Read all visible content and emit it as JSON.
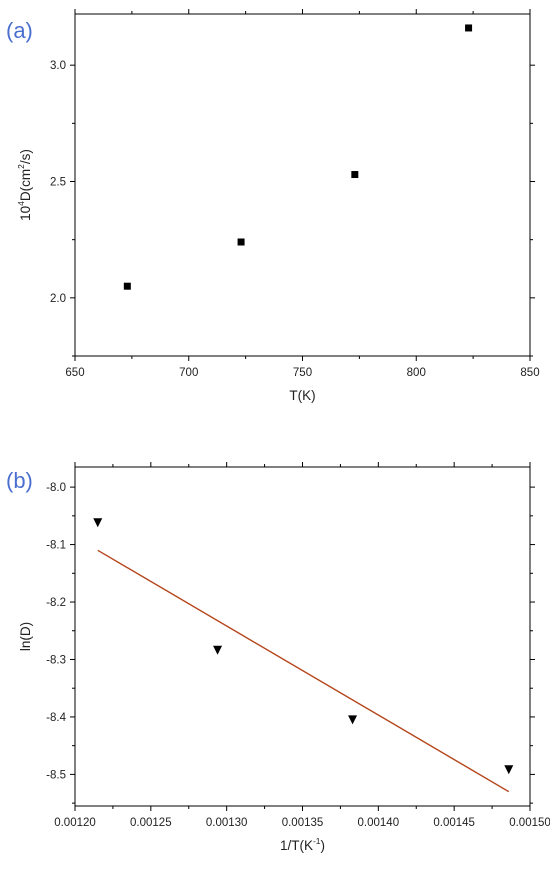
{
  "panels": [
    {
      "label": "(a)",
      "chart_data": {
        "type": "scatter",
        "xlabel": "T(K)",
        "ylabel_parts": {
          "pre": "10",
          "exp": "4",
          "mid": "D(cm",
          "unit_exp": "2",
          "post": "/s)"
        },
        "xlim": [
          650,
          850
        ],
        "ylim": [
          1.75,
          3.22
        ],
        "x_ticks": [
          "650",
          "700",
          "750",
          "800",
          "850"
        ],
        "x_tick_values": [
          650,
          700,
          750,
          800,
          850
        ],
        "y_ticks": [
          "2.0",
          "2.5",
          "3.0"
        ],
        "y_tick_values": [
          2.0,
          2.5,
          3.0
        ],
        "series": [
          {
            "marker": "square",
            "color": "#000000",
            "x": [
              673,
              723,
              773,
              823
            ],
            "y": [
              2.05,
              2.24,
              2.53,
              3.16
            ]
          }
        ]
      }
    },
    {
      "label": "(b)",
      "chart_data": {
        "type": "scatter",
        "xlabel_parts": {
          "pre": "1/T(K",
          "exp": "-1",
          "post": ")"
        },
        "ylabel": "ln(D)",
        "xlim": [
          0.0012,
          0.0015
        ],
        "ylim": [
          -8.555,
          -7.965
        ],
        "x_ticks": [
          "0.00120",
          "0.00125",
          "0.00130",
          "0.00135",
          "0.00140",
          "0.00145",
          "0.00150"
        ],
        "x_tick_values": [
          0.0012,
          0.00125,
          0.0013,
          0.00135,
          0.0014,
          0.00145,
          0.0015
        ],
        "y_ticks": [
          "-8.0",
          "-8.1",
          "-8.2",
          "-8.3",
          "-8.4",
          "-8.5"
        ],
        "y_tick_values": [
          -8.0,
          -8.1,
          -8.2,
          -8.3,
          -8.4,
          -8.5
        ],
        "series": [
          {
            "marker": "triangle-down",
            "color": "#000000",
            "x": [
              0.001215,
              0.001294,
              0.001383,
              0.001486
            ],
            "y": [
              -8.062,
              -8.284,
              -8.405,
              -8.492
            ]
          }
        ],
        "fit_line": {
          "color": "#b5451b",
          "x": [
            0.001215,
            0.001486
          ],
          "y": [
            -8.11,
            -8.53
          ]
        }
      }
    }
  ]
}
